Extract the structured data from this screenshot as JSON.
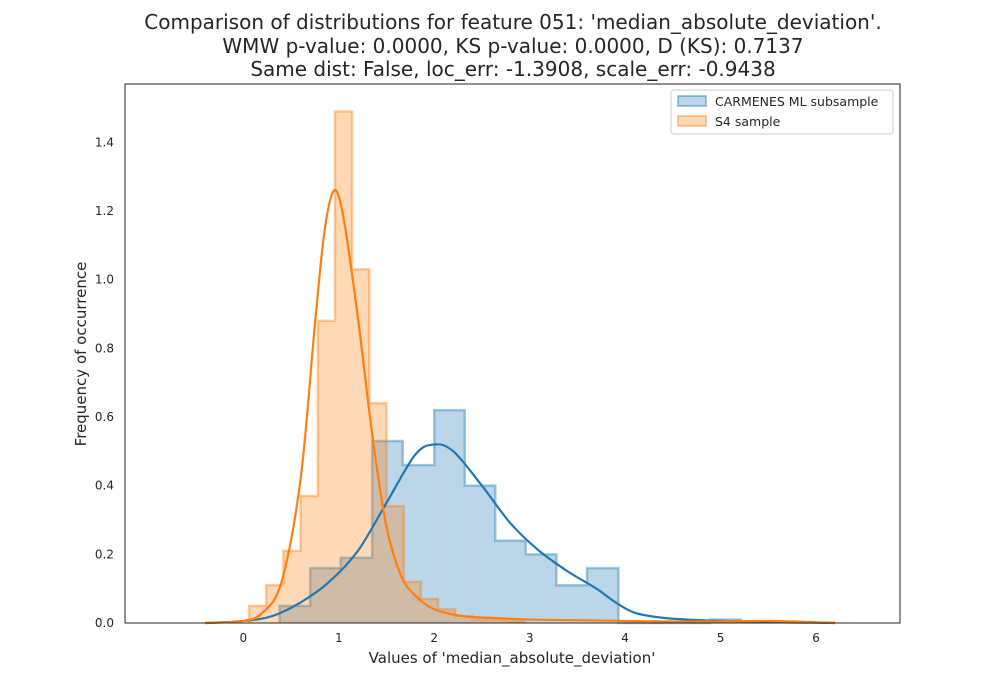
{
  "chart_data": {
    "type": "histogram+kde",
    "title_lines": [
      "Comparison of distributions for feature 051: 'median_absolute_deviation'.",
      "WMW p-value: 0.0000, KS p-value: 0.0000, D (KS): 0.7137",
      "Same dist: False, loc_err: -1.3908, scale_err: -0.9438"
    ],
    "xlabel": "Values of 'median_absolute_deviation'",
    "ylabel": "Frequency of occurrence",
    "xlim": [
      -1.24,
      6.88
    ],
    "ylim": [
      0,
      1.57
    ],
    "xticks": [
      0,
      1,
      2,
      3,
      4,
      5,
      6
    ],
    "yticks": [
      0.0,
      0.2,
      0.4,
      0.6,
      0.8,
      1.0,
      1.2,
      1.4
    ],
    "legend_position": "top-right",
    "series": [
      {
        "name": "CARMENES ML subsample",
        "color": "#1f77b4",
        "bins": [
          [
            0.38,
            0.7,
            0.05
          ],
          [
            0.7,
            1.02,
            0.16
          ],
          [
            1.02,
            1.35,
            0.19
          ],
          [
            1.35,
            1.67,
            0.53
          ],
          [
            1.67,
            2.0,
            0.46
          ],
          [
            2.0,
            2.32,
            0.62
          ],
          [
            2.32,
            2.64,
            0.4
          ],
          [
            2.64,
            2.96,
            0.24
          ],
          [
            2.96,
            3.28,
            0.2
          ],
          [
            3.28,
            3.6,
            0.11
          ],
          [
            3.6,
            3.93,
            0.16
          ],
          [
            3.93,
            4.25,
            0.0
          ],
          [
            4.25,
            4.57,
            0.0
          ],
          [
            4.57,
            4.89,
            0.0
          ],
          [
            4.89,
            5.21,
            0.01
          ]
        ],
        "kde": [
          [
            -0.4,
            0.0
          ],
          [
            0.0,
            0.006
          ],
          [
            0.3,
            0.02
          ],
          [
            0.6,
            0.06
          ],
          [
            0.9,
            0.12
          ],
          [
            1.2,
            0.21
          ],
          [
            1.5,
            0.35
          ],
          [
            1.8,
            0.49
          ],
          [
            2.0,
            0.52
          ],
          [
            2.2,
            0.5
          ],
          [
            2.5,
            0.4
          ],
          [
            2.8,
            0.29
          ],
          [
            3.1,
            0.21
          ],
          [
            3.4,
            0.15
          ],
          [
            3.7,
            0.1
          ],
          [
            3.9,
            0.06
          ],
          [
            4.1,
            0.03
          ],
          [
            4.4,
            0.015
          ],
          [
            4.8,
            0.008
          ],
          [
            5.2,
            0.005
          ],
          [
            5.6,
            0.002
          ],
          [
            6.0,
            0.001
          ],
          [
            6.2,
            0.0
          ]
        ]
      },
      {
        "name": "S4 sample",
        "color": "#ff7f0e",
        "bins": [
          [
            0.06,
            0.24,
            0.05
          ],
          [
            0.24,
            0.42,
            0.11
          ],
          [
            0.42,
            0.6,
            0.21
          ],
          [
            0.6,
            0.78,
            0.37
          ],
          [
            0.78,
            0.96,
            0.88
          ],
          [
            0.96,
            1.14,
            1.49
          ],
          [
            1.14,
            1.32,
            1.03
          ],
          [
            1.32,
            1.5,
            0.64
          ],
          [
            1.5,
            1.68,
            0.34
          ],
          [
            1.68,
            1.86,
            0.12
          ],
          [
            1.86,
            2.04,
            0.07
          ],
          [
            2.04,
            2.22,
            0.04
          ],
          [
            2.22,
            2.4,
            0.02
          ],
          [
            2.4,
            2.58,
            0.01
          ],
          [
            2.58,
            2.76,
            0.01
          ],
          [
            2.76,
            2.94,
            0.005
          ]
        ],
        "kde": [
          [
            -0.4,
            0.0
          ],
          [
            0.0,
            0.006
          ],
          [
            0.2,
            0.03
          ],
          [
            0.4,
            0.12
          ],
          [
            0.6,
            0.42
          ],
          [
            0.75,
            0.87
          ],
          [
            0.85,
            1.14
          ],
          [
            0.95,
            1.26
          ],
          [
            1.05,
            1.18
          ],
          [
            1.2,
            0.89
          ],
          [
            1.35,
            0.55
          ],
          [
            1.5,
            0.28
          ],
          [
            1.65,
            0.14
          ],
          [
            1.8,
            0.08
          ],
          [
            2.0,
            0.04
          ],
          [
            2.3,
            0.02
          ],
          [
            2.6,
            0.015
          ],
          [
            3.0,
            0.01
          ],
          [
            3.6,
            0.008
          ],
          [
            4.0,
            0.006
          ],
          [
            4.8,
            0.004
          ],
          [
            5.5,
            0.006
          ],
          [
            5.9,
            0.003
          ],
          [
            6.2,
            0.0
          ]
        ]
      }
    ]
  }
}
